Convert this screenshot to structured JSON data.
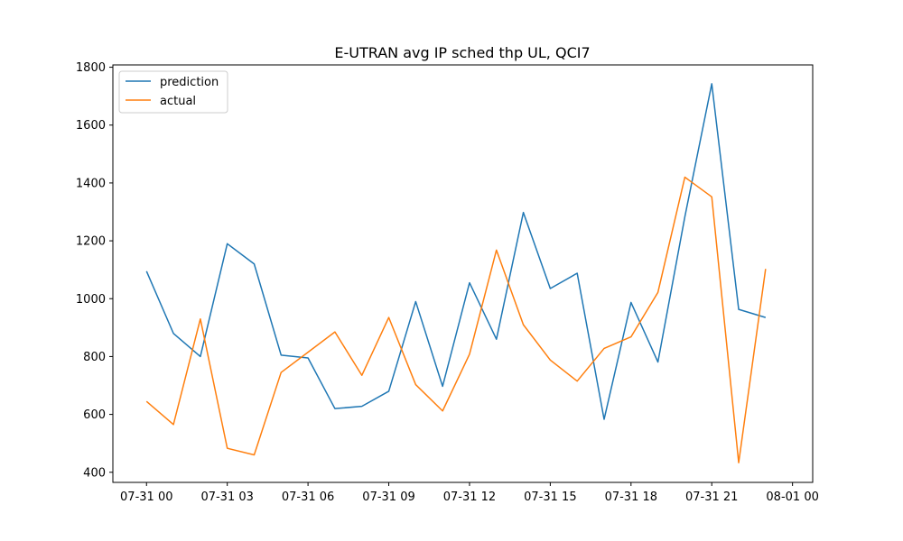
{
  "chart_data": {
    "type": "line",
    "title": "E-UTRAN avg IP sched thp UL, QCI7",
    "xlabel": "",
    "ylabel": "",
    "xlim_hours": [
      -1.25,
      24.75
    ],
    "ylim": [
      365,
      1808
    ],
    "x_hours": [
      0,
      1,
      2,
      3,
      4,
      5,
      6,
      7,
      8,
      9,
      10,
      11,
      12,
      13,
      14,
      15,
      16,
      17,
      18,
      19,
      20,
      21,
      22,
      23
    ],
    "x_ticks": [
      {
        "hour": 0,
        "label": "07-31 00"
      },
      {
        "hour": 3,
        "label": "07-31 03"
      },
      {
        "hour": 6,
        "label": "07-31 06"
      },
      {
        "hour": 9,
        "label": "07-31 09"
      },
      {
        "hour": 12,
        "label": "07-31 12"
      },
      {
        "hour": 15,
        "label": "07-31 15"
      },
      {
        "hour": 18,
        "label": "07-31 18"
      },
      {
        "hour": 21,
        "label": "07-31 21"
      },
      {
        "hour": 24,
        "label": "08-01 00"
      }
    ],
    "y_ticks": [
      400,
      600,
      800,
      1000,
      1200,
      1400,
      1600,
      1800
    ],
    "legend_position": "upper-left",
    "series": [
      {
        "name": "prediction",
        "color": "#1f77b4",
        "values": [
          1095,
          880,
          800,
          1190,
          1120,
          805,
          795,
          620,
          628,
          680,
          990,
          697,
          1055,
          860,
          1298,
          1035,
          1088,
          583,
          987,
          781,
          1283,
          1743,
          963,
          935
        ]
      },
      {
        "name": "actual",
        "color": "#ff7f0e",
        "values": [
          645,
          565,
          930,
          483,
          460,
          745,
          815,
          885,
          735,
          935,
          703,
          612,
          808,
          1168,
          910,
          788,
          715,
          828,
          868,
          1022,
          1420,
          1352,
          433,
          1103
        ]
      }
    ]
  }
}
